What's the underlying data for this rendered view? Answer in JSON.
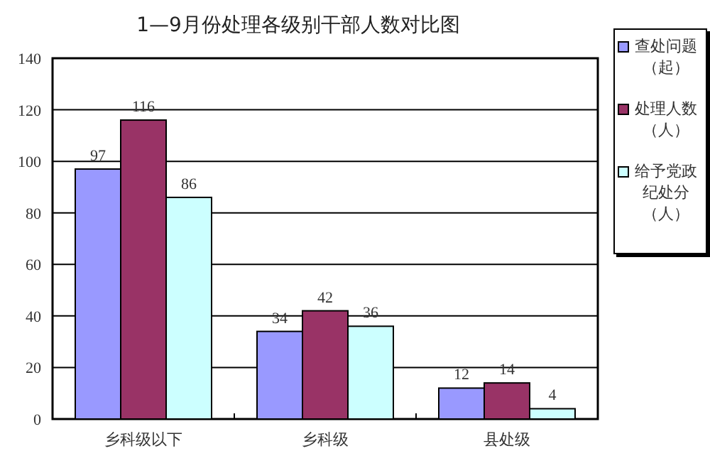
{
  "chart_data": {
    "type": "bar",
    "title": "1—9月份处理各级别干部人数对比图",
    "categories": [
      "乡科级以下",
      "乡科级",
      "县处级"
    ],
    "series": [
      {
        "name": "查处问题（起）",
        "color": "#9999ff",
        "values": [
          97,
          34,
          12
        ]
      },
      {
        "name": "处理人数（人）",
        "color": "#993366",
        "values": [
          116,
          42,
          14
        ]
      },
      {
        "name": "给予党政纪处分（人）",
        "color": "#ccffff",
        "values": [
          86,
          36,
          4
        ]
      }
    ],
    "ylim": [
      0,
      140
    ],
    "yticks": [
      0,
      20,
      40,
      60,
      80,
      100,
      120,
      140
    ],
    "grid": "y",
    "legend": "right",
    "data_labels": true
  }
}
